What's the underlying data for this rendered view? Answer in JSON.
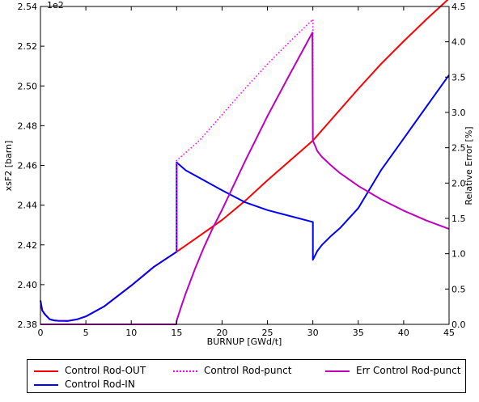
{
  "chart_data": {
    "type": "line",
    "xlabel": "BURNUP [GWd/t]",
    "ylabel": "xsF2 [barn]",
    "y2label": "Relative Error [%]",
    "yscale_note": "1e2",
    "xlim": [
      0,
      45
    ],
    "ylim": [
      2.38,
      2.54
    ],
    "y2lim": [
      0.0,
      4.5
    ],
    "x_ticks": [
      "0",
      "5",
      "10",
      "15",
      "20",
      "25",
      "30",
      "35",
      "40",
      "45"
    ],
    "y_ticks": [
      "2.38",
      "2.40",
      "2.42",
      "2.44",
      "2.46",
      "2.48",
      "2.50",
      "2.52",
      "2.54"
    ],
    "y2_ticks": [
      "0.0",
      "0.5",
      "1.0",
      "1.5",
      "2.0",
      "2.5",
      "3.0",
      "3.5",
      "4.0",
      "4.5"
    ],
    "grid": false,
    "legend_position": "bottom",
    "series": [
      {
        "name": "Control Rod-OUT",
        "color": "#ff0000",
        "style": "solid",
        "axis": "left",
        "x": [
          0,
          0.2,
          0.5,
          1,
          1.5,
          2,
          3,
          4,
          5,
          7,
          10,
          12.5,
          15,
          17.5,
          20,
          22.5,
          25,
          27.5,
          30,
          32.5,
          35,
          37.5,
          40,
          42.5,
          45
        ],
        "y": [
          2.392,
          2.387,
          2.385,
          2.3826,
          2.382,
          2.3818,
          2.3817,
          2.3825,
          2.384,
          2.389,
          2.3995,
          2.409,
          2.4165,
          2.4245,
          2.4325,
          2.442,
          2.4525,
          2.4625,
          2.4725,
          2.4855,
          2.4985,
          2.511,
          2.5225,
          2.5335,
          2.544
        ]
      },
      {
        "name": "Control Rod-IN",
        "color": "#0000ff",
        "style": "solid",
        "axis": "left",
        "x": [
          0,
          0.2,
          0.5,
          1,
          1.5,
          2,
          3,
          4,
          5,
          7,
          10,
          12.5,
          15,
          15,
          16,
          18,
          20,
          22.5,
          25,
          27.5,
          30,
          30,
          30.5,
          31,
          32,
          33,
          35,
          37.5,
          40,
          42.5,
          45
        ],
        "y": [
          2.392,
          2.387,
          2.385,
          2.3826,
          2.382,
          2.3818,
          2.3817,
          2.3825,
          2.384,
          2.389,
          2.3995,
          2.409,
          2.4165,
          2.4615,
          2.4575,
          2.4525,
          2.4475,
          2.4415,
          2.4375,
          2.4345,
          2.4315,
          2.4125,
          2.417,
          2.42,
          2.4245,
          2.4285,
          2.4385,
          2.4575,
          2.4735,
          2.4895,
          2.5055
        ]
      },
      {
        "name": "Control Rod-punct",
        "color": "#ff00ff",
        "style": "dotted",
        "axis": "left",
        "x": [
          15,
          15,
          17.5,
          20,
          22.5,
          25,
          27.5,
          30,
          30
        ],
        "y": [
          2.4165,
          2.4625,
          2.4725,
          2.4855,
          2.4985,
          2.511,
          2.5225,
          2.5335,
          2.473
        ]
      },
      {
        "name": "Err Control Rod-punct",
        "color": "#bf00bf",
        "style": "solid",
        "axis": "right",
        "x": [
          0,
          14.95,
          15,
          15.5,
          16,
          17,
          18,
          19,
          20,
          22.5,
          25,
          27.5,
          29.95,
          30,
          30.5,
          31,
          32,
          33,
          35,
          37.5,
          40,
          42.5,
          45
        ],
        "y": [
          0,
          0,
          0.05,
          0.25,
          0.44,
          0.78,
          1.09,
          1.37,
          1.62,
          2.3,
          2.95,
          3.55,
          4.13,
          2.6,
          2.45,
          2.37,
          2.25,
          2.14,
          1.96,
          1.77,
          1.61,
          1.47,
          1.35
        ]
      }
    ]
  }
}
